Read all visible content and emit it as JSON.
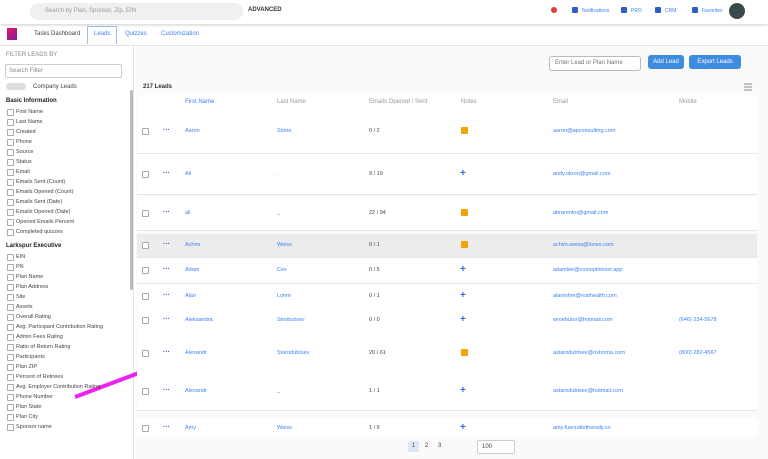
{
  "topbar": {
    "search_placeholder": "Search by Plan, Sponsor, Zip, EIN",
    "advanced": "ADVANCED",
    "nav": [
      "Notifications",
      "PRO",
      "CRM",
      "Favorites"
    ]
  },
  "tabs": [
    "Tasks Dashboard",
    "Leads",
    "Quizzes",
    "Customization"
  ],
  "sidebar": {
    "title": "FILTER LEADS BY",
    "search_placeholder": "Search Filter",
    "toggle": "Company Leads",
    "groups": [
      {
        "title": "Basic Information",
        "items": [
          "First Name",
          "Last Name",
          "Created",
          "Phone",
          "Source",
          "Status",
          "Email",
          "Emails Sent (Count)",
          "Emails Opened (Count)",
          "Emails Sent (Date)",
          "Emails Opened (Date)",
          "Opened Emails Percent",
          "Completed quizzes"
        ]
      },
      {
        "title": "Larkspur Executive",
        "items": [
          "EIN",
          "PN",
          "Plan Name",
          "Plan Address",
          "Site",
          "Assets",
          "Overall Rating",
          "Avg. Participant Contribution Rating",
          "Admin Fees Rating",
          "Ratio of Return Rating",
          "Participants",
          "Plan ZIP",
          "Percent of Retirees",
          "Avg. Employer Contribution Rating",
          "Phone Number",
          "Plan State",
          "Plan City",
          "Sponsor name"
        ]
      }
    ]
  },
  "toolbar": {
    "count": "217 Leads",
    "search_placeholder": "Enter Lead or Plan Name",
    "add": "Add Lead",
    "export": "Export Leads"
  },
  "table": {
    "columns": [
      "First Name",
      "Last Name",
      "Emails Opened / Sent",
      "Notes",
      "Email",
      "Mobile"
    ],
    "rows": [
      {
        "first": "Aaron",
        "last": "Stone",
        "emails": "0 / 2",
        "has_note": true,
        "email": "aaron@apconsulting.com"
      },
      {
        "first": "Ali",
        "last": ".",
        "emails": "9 / 19",
        "has_note": false,
        "email": "andy.okron@gmail.com"
      },
      {
        "first": "ali",
        "last": "_",
        "emails": "22 / 94",
        "has_note": true,
        "email": "abrarenko@gmail.com"
      },
      {
        "first": "Achim",
        "last": "Weiss",
        "emails": "0 / 1",
        "has_note": true,
        "email": "achim.weiss@lonex.com"
      },
      {
        "first": "Adam",
        "last": "Cev",
        "emails": "0 / 5",
        "has_note": false,
        "email": "adamlee@coinoptimizer.app"
      },
      {
        "first": "Alan",
        "last": "Lohm",
        "emails": "0 / 1",
        "has_note": false,
        "email": "alanlohm@rosihealth.com"
      },
      {
        "first": "Aleksandra",
        "last": "Stroibutsev",
        "emails": "0 / 0",
        "has_note": false,
        "email": "wroebutor@hotmail.com",
        "mobile": "(646) 234-5678"
      },
      {
        "first": "Alexandr",
        "last": "Starodubtsev",
        "emails": "20 / 61",
        "has_note": true,
        "email": "astarodubtsev@ristroma.com",
        "mobile": "(800) 282-4567"
      },
      {
        "first": "Alexandr",
        "last": "_",
        "emails": "1 / 1",
        "has_note": false,
        "email": "astarodubtsev@hotmail.com"
      },
      {
        "first": "Amy",
        "last": "Weiss",
        "emails": "1 / 6",
        "has_note": false,
        "email": "amy.fuerzaltothersdy.co"
      }
    ]
  },
  "pagination": {
    "pages": [
      "1",
      "2",
      "3"
    ],
    "page_size": "100"
  }
}
